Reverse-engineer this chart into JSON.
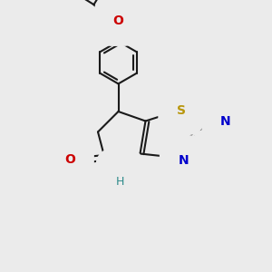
{
  "bg_color": "#ebebeb",
  "bond_color": "#1a1a1a",
  "S_color": "#b8960c",
  "N_color": "#0000cc",
  "O_color": "#cc0000",
  "NH_color": "#2e8b8b",
  "lw": 1.5,
  "figsize": [
    3.0,
    3.0
  ],
  "dpi": 100,
  "xlim": [
    0,
    10
  ],
  "ylim": [
    0,
    10
  ]
}
